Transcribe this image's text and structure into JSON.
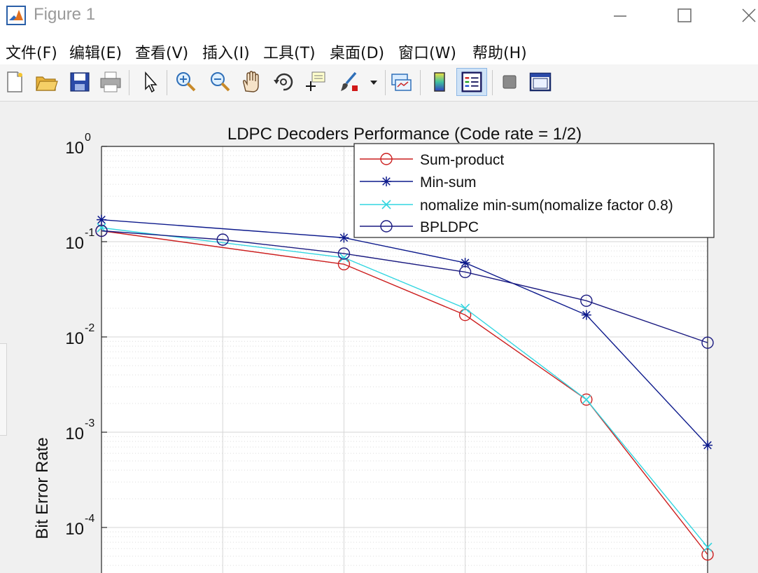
{
  "window": {
    "title": "Figure 1",
    "controls": [
      "minimize-icon",
      "maximize-icon",
      "close-icon"
    ]
  },
  "menu": [
    {
      "label": "文件(F)"
    },
    {
      "label": "编辑(E)"
    },
    {
      "label": "查看(V)"
    },
    {
      "label": "插入(I)"
    },
    {
      "label": "工具(T)"
    },
    {
      "label": "桌面(D)"
    },
    {
      "label": "窗口(W)"
    },
    {
      "label": "帮助(H)"
    }
  ],
  "toolbar": {
    "buttons": [
      "new-figure-icon",
      "open-file-icon",
      "save-icon",
      "print-icon",
      "edit-plot-arrow-icon",
      "zoom-in-icon",
      "zoom-out-icon",
      "pan-hand-icon",
      "rotate-3d-icon",
      "data-cursor-icon",
      "brush-icon",
      "brush-dropdown-icon",
      "link-plot-icon",
      "colorbar-icon",
      "legend-icon",
      "hide-plot-tools-icon",
      "show-plot-tools-icon"
    ],
    "active": "legend-icon"
  },
  "colors": {
    "sum_product": "#cc1f1f",
    "min_sum": "#0d1a8c",
    "normalized": "#33d6e0",
    "bpldpc": "#1a1a80"
  },
  "chart_data": {
    "type": "line",
    "title": "LDPC Decoders Performance (Code rate = 1/2)",
    "xlabel": "",
    "ylabel": "Bit Error Rate",
    "yscale": "log",
    "ylim": [
      3e-05,
      1
    ],
    "ytick_labels": [
      "10",
      "10",
      "10",
      "10",
      "10"
    ],
    "ytick_exponents": [
      "0",
      "-1",
      "-2",
      "-3",
      "-4"
    ],
    "ytick_values": [
      1,
      0.1,
      0.01,
      0.001,
      0.0001
    ],
    "x_positions": [
      0,
      1,
      2,
      3,
      4,
      5
    ],
    "grid": true,
    "legend_location": "top-right",
    "series": [
      {
        "name": "Sum-product",
        "marker": "circle",
        "color": "#cc1f1f",
        "x": [
          0,
          2,
          3,
          4,
          5
        ],
        "y": [
          0.13,
          0.058,
          0.017,
          0.0022,
          5.2e-05
        ]
      },
      {
        "name": "Min-sum",
        "marker": "star",
        "color": "#0d1a8c",
        "x": [
          0,
          2,
          3,
          4,
          5
        ],
        "y": [
          0.17,
          0.11,
          0.06,
          0.017,
          0.00073
        ]
      },
      {
        "name": "nomalize min-sum(nomalize factor 0.8)",
        "marker": "x",
        "color": "#33d6e0",
        "x": [
          0,
          2,
          3,
          4,
          5
        ],
        "y": [
          0.14,
          0.068,
          0.02,
          0.0022,
          6.2e-05
        ]
      },
      {
        "name": "BPLDPC",
        "marker": "circle",
        "color": "#1a1a80",
        "x": [
          0,
          1,
          2,
          3,
          4,
          5
        ],
        "y": [
          0.13,
          0.105,
          0.075,
          0.048,
          0.024,
          0.0087
        ]
      }
    ]
  }
}
